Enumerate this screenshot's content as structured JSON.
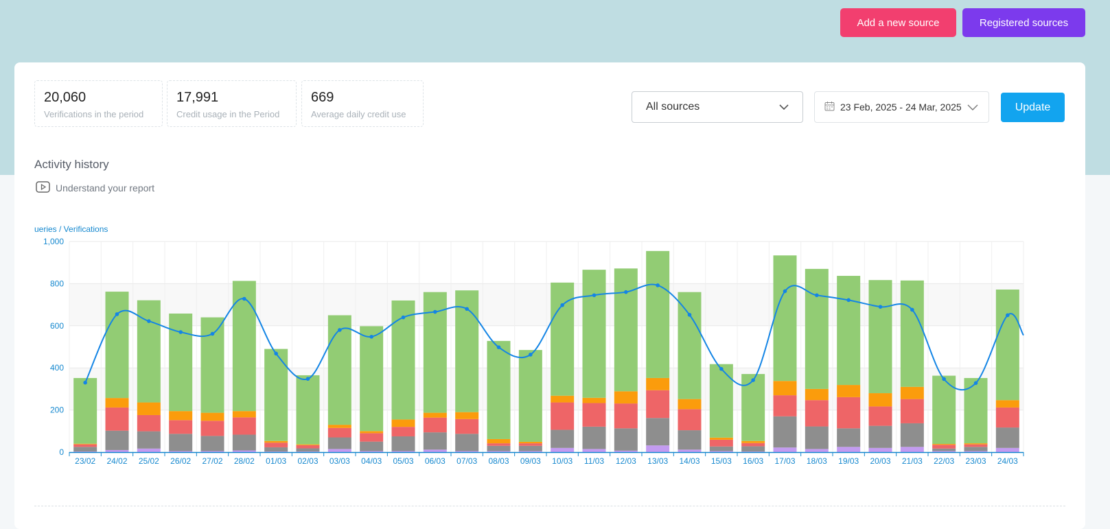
{
  "header": {
    "add_source_label": "Add a new source",
    "registered_sources_label": "Registered sources"
  },
  "stats": [
    {
      "value": "20,060",
      "label": "Verifications in the period"
    },
    {
      "value": "17,991",
      "label": "Credit usage in the Period"
    },
    {
      "value": "669",
      "label": "Average daily credit use"
    }
  ],
  "filters": {
    "source_selected": "All sources",
    "date_range": "23 Feb, 2025 - 24 Mar, 2025",
    "update_label": "Update"
  },
  "section": {
    "title": "Activity history",
    "help_link": "Understand your report"
  },
  "chart_data": {
    "type": "bar",
    "ylabel": "ueries / Verifications",
    "ylim": [
      0,
      1000
    ],
    "yticks": [
      "0",
      "200",
      "400",
      "600",
      "800",
      "1,000"
    ],
    "categories": [
      "23/02",
      "24/02",
      "25/02",
      "26/02",
      "27/02",
      "28/02",
      "01/03",
      "02/03",
      "03/03",
      "04/03",
      "05/03",
      "06/03",
      "07/03",
      "08/03",
      "09/03",
      "10/03",
      "11/03",
      "12/03",
      "13/03",
      "14/03",
      "15/03",
      "16/03",
      "17/03",
      "18/03",
      "19/03",
      "20/03",
      "21/03",
      "22/03",
      "23/03",
      "24/03"
    ],
    "series": [
      {
        "color": "#c39bf1",
        "values": [
          3,
          10,
          17,
          5,
          5,
          8,
          3,
          3,
          15,
          5,
          5,
          12,
          5,
          5,
          5,
          20,
          15,
          7,
          32,
          12,
          5,
          3,
          22,
          15,
          25,
          20,
          25,
          5,
          5,
          20
        ]
      },
      {
        "color": "#8e8e8e",
        "values": [
          22,
          92,
          82,
          82,
          72,
          75,
          20,
          15,
          55,
          45,
          70,
          82,
          82,
          25,
          25,
          86,
          106,
          106,
          130,
          92,
          22,
          25,
          148,
          107,
          88,
          105,
          112,
          12,
          20,
          97
        ]
      },
      {
        "color": "#ee6567",
        "values": [
          12,
          110,
          77,
          65,
          72,
          82,
          22,
          15,
          45,
          40,
          45,
          70,
          70,
          12,
          12,
          130,
          112,
          118,
          132,
          100,
          32,
          15,
          100,
          125,
          148,
          92,
          115,
          18,
          12,
          95
        ]
      },
      {
        "color": "#fb9c0c",
        "values": [
          3,
          45,
          60,
          43,
          38,
          30,
          8,
          4,
          15,
          10,
          35,
          23,
          33,
          20,
          7,
          32,
          25,
          58,
          58,
          48,
          10,
          10,
          68,
          53,
          58,
          63,
          58,
          4,
          5,
          35
        ]
      },
      {
        "color": "#92cc74",
        "values": [
          312,
          505,
          485,
          463,
          453,
          618,
          437,
          328,
          520,
          498,
          565,
          573,
          578,
          466,
          436,
          537,
          608,
          583,
          603,
          508,
          349,
          318,
          596,
          570,
          518,
          537,
          505,
          324,
          310,
          525
        ]
      }
    ],
    "line": {
      "color": "#1485e5",
      "values": [
        330,
        655,
        622,
        570,
        562,
        728,
        468,
        348,
        580,
        548,
        640,
        666,
        680,
        498,
        463,
        698,
        745,
        760,
        792,
        652,
        395,
        342,
        764,
        745,
        722,
        690,
        676,
        347,
        328,
        650
      ],
      "end_value": 555
    }
  }
}
